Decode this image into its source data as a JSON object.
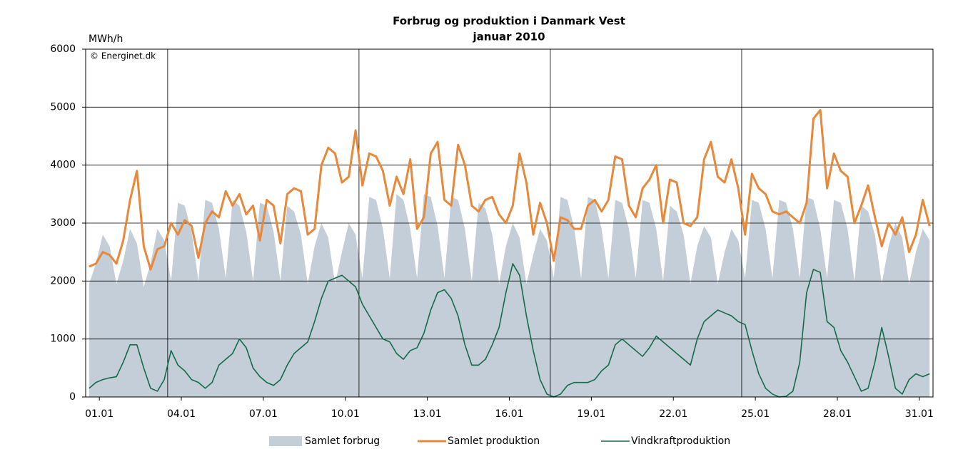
{
  "chart_data": {
    "type": "area-line",
    "title": "Forbrug og produktion i Danmark Vest",
    "subtitle": "januar 2010",
    "y_label": "MWh/h",
    "annotation": "© Energinet.dk",
    "xlim": [
      1,
      32
    ],
    "ylim": [
      0,
      6000
    ],
    "yticks": [
      0,
      1000,
      2000,
      3000,
      4000,
      5000,
      6000
    ],
    "xticks": [
      {
        "value": 1.5,
        "label": "01.01"
      },
      {
        "value": 4.5,
        "label": "04.01"
      },
      {
        "value": 7.5,
        "label": "07.01"
      },
      {
        "value": 10.5,
        "label": "10.01"
      },
      {
        "value": 13.5,
        "label": "13.01"
      },
      {
        "value": 16.5,
        "label": "16.01"
      },
      {
        "value": 19.5,
        "label": "19.01"
      },
      {
        "value": 22.5,
        "label": "22.01"
      },
      {
        "value": 25.5,
        "label": "25.01"
      },
      {
        "value": 28.5,
        "label": "28.01"
      },
      {
        "value": 31.5,
        "label": "31.01"
      }
    ],
    "xgrid": [
      4,
      11,
      18,
      25
    ],
    "grid": true,
    "legend": "bottom",
    "x": [
      1.125,
      1.375,
      1.625,
      1.875,
      2.125,
      2.375,
      2.625,
      2.875,
      3.125,
      3.375,
      3.625,
      3.875,
      4.125,
      4.375,
      4.625,
      4.875,
      5.125,
      5.375,
      5.625,
      5.875,
      6.125,
      6.375,
      6.625,
      6.875,
      7.125,
      7.375,
      7.625,
      7.875,
      8.125,
      8.375,
      8.625,
      8.875,
      9.125,
      9.375,
      9.625,
      9.875,
      10.125,
      10.375,
      10.625,
      10.875,
      11.125,
      11.375,
      11.625,
      11.875,
      12.125,
      12.375,
      12.625,
      12.875,
      13.125,
      13.375,
      13.625,
      13.875,
      14.125,
      14.375,
      14.625,
      14.875,
      15.125,
      15.375,
      15.625,
      15.875,
      16.125,
      16.375,
      16.625,
      16.875,
      17.125,
      17.375,
      17.625,
      17.875,
      18.125,
      18.375,
      18.625,
      18.875,
      19.125,
      19.375,
      19.625,
      19.875,
      20.125,
      20.375,
      20.625,
      20.875,
      21.125,
      21.375,
      21.625,
      21.875,
      22.125,
      22.375,
      22.625,
      22.875,
      23.125,
      23.375,
      23.625,
      23.875,
      24.125,
      24.375,
      24.625,
      24.875,
      25.125,
      25.375,
      25.625,
      25.875,
      26.125,
      26.375,
      26.625,
      26.875,
      27.125,
      27.375,
      27.625,
      27.875,
      28.125,
      28.375,
      28.625,
      28.875,
      29.125,
      29.375,
      29.625,
      29.875,
      30.125,
      30.375,
      30.625,
      30.875,
      31.125,
      31.375,
      31.625,
      31.875
    ],
    "series": [
      {
        "name": "Samlet forbrug",
        "kind": "area",
        "color": "#c3ced8",
        "values": [
          1950,
          2300,
          2800,
          2600,
          1950,
          2350,
          2900,
          2650,
          1900,
          2300,
          2900,
          2700,
          2000,
          3350,
          3300,
          2850,
          2000,
          3400,
          3350,
          2900,
          2050,
          3400,
          3300,
          2850,
          2000,
          3350,
          3300,
          2850,
          2000,
          3300,
          3200,
          2800,
          1950,
          2600,
          3000,
          2750,
          1950,
          2500,
          3000,
          2800,
          2050,
          3450,
          3400,
          2900,
          2050,
          3500,
          3400,
          2900,
          2050,
          3500,
          3450,
          2950,
          2050,
          3450,
          3400,
          2900,
          2000,
          3350,
          3250,
          2800,
          1950,
          2600,
          3000,
          2750,
          1950,
          2450,
          2900,
          2700,
          2050,
          3450,
          3400,
          2900,
          2050,
          3450,
          3400,
          2900,
          2050,
          3400,
          3350,
          2900,
          2050,
          3400,
          3350,
          2900,
          2000,
          3300,
          3200,
          2800,
          1950,
          2600,
          2950,
          2750,
          1950,
          2500,
          2900,
          2700,
          2050,
          3400,
          3350,
          2900,
          2050,
          3400,
          3350,
          2900,
          2050,
          3450,
          3400,
          2900,
          2050,
          3400,
          3350,
          2900,
          2000,
          3300,
          3200,
          2800,
          1950,
          2600,
          3000,
          2750,
          1950,
          2500,
          2900,
          2700
        ]
      },
      {
        "name": "Samlet produktion",
        "kind": "line",
        "color": "#e8883a",
        "values": [
          2250,
          2300,
          2500,
          2450,
          2300,
          2700,
          3400,
          3900,
          2600,
          2200,
          2550,
          2600,
          3000,
          2800,
          3050,
          2950,
          2400,
          3000,
          3200,
          3100,
          3550,
          3300,
          3500,
          3150,
          3300,
          2700,
          3400,
          3300,
          2650,
          3500,
          3600,
          3550,
          2800,
          2900,
          4000,
          4300,
          4200,
          3700,
          3800,
          4600,
          3650,
          4200,
          4150,
          3900,
          3300,
          3800,
          3500,
          4100,
          2900,
          3100,
          4200,
          4400,
          3400,
          3300,
          4350,
          4000,
          3300,
          3200,
          3400,
          3450,
          3150,
          3000,
          3300,
          4200,
          3700,
          2800,
          3350,
          3000,
          2350,
          3100,
          3050,
          2900,
          2900,
          3300,
          3400,
          3200,
          3400,
          4150,
          4100,
          3300,
          3100,
          3600,
          3750,
          4000,
          3000,
          3750,
          3700,
          3000,
          2950,
          3100,
          4100,
          4400,
          3800,
          3700,
          4100,
          3600,
          2800,
          3850,
          3600,
          3500,
          3200,
          3150,
          3200,
          3100,
          3000,
          3350,
          4800,
          4950,
          3600,
          4200,
          3900,
          3800,
          3000,
          3300,
          3650,
          3100,
          2600,
          3000,
          2800,
          3100,
          2500,
          2800,
          3400,
          2950
        ]
      },
      {
        "name": "Vindkraftproduktion",
        "kind": "line",
        "color": "#156b48",
        "values": [
          150,
          250,
          300,
          330,
          350,
          600,
          900,
          900,
          500,
          150,
          100,
          300,
          800,
          550,
          450,
          300,
          250,
          150,
          250,
          550,
          650,
          750,
          1000,
          850,
          500,
          350,
          250,
          200,
          300,
          550,
          750,
          850,
          950,
          1300,
          1700,
          2000,
          2050,
          2100,
          2000,
          1900,
          1600,
          1400,
          1200,
          1000,
          950,
          750,
          650,
          800,
          850,
          1100,
          1500,
          1800,
          1850,
          1700,
          1400,
          900,
          550,
          550,
          650,
          900,
          1200,
          1800,
          2300,
          2100,
          1400,
          800,
          300,
          50,
          0,
          50,
          200,
          250,
          250,
          250,
          300,
          450,
          550,
          900,
          1000,
          900,
          800,
          700,
          850,
          1050,
          950,
          850,
          750,
          650,
          550,
          1000,
          1300,
          1400,
          1500,
          1450,
          1400,
          1300,
          1250,
          800,
          400,
          150,
          50,
          0,
          10,
          100,
          600,
          1800,
          2200,
          2150,
          1300,
          1200,
          800,
          600,
          350,
          100,
          150,
          600,
          1200,
          700,
          150,
          50,
          300,
          400,
          350,
          400
        ]
      }
    ]
  }
}
